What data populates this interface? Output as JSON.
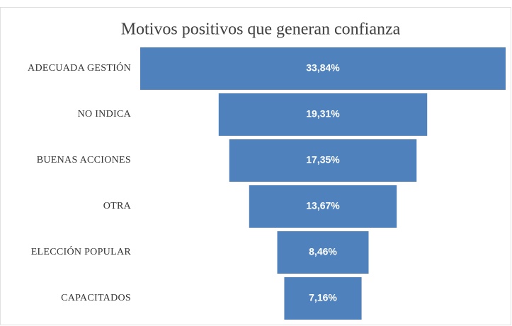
{
  "chart_data": {
    "type": "funnel",
    "title": "Motivos positivos que generan confianza",
    "categories": [
      "ADECUADA GESTIÓN",
      "NO INDICA",
      "BUENAS ACCIONES",
      "OTRA",
      "ELECCIÓN POPULAR",
      "CAPACITADOS"
    ],
    "values": [
      33.84,
      19.31,
      17.35,
      13.67,
      8.46,
      7.16
    ],
    "value_labels": [
      "33,84%",
      "19,31%",
      "17,35%",
      "13,67%",
      "8,46%",
      "7,16%"
    ],
    "color": "#4f81bd"
  }
}
